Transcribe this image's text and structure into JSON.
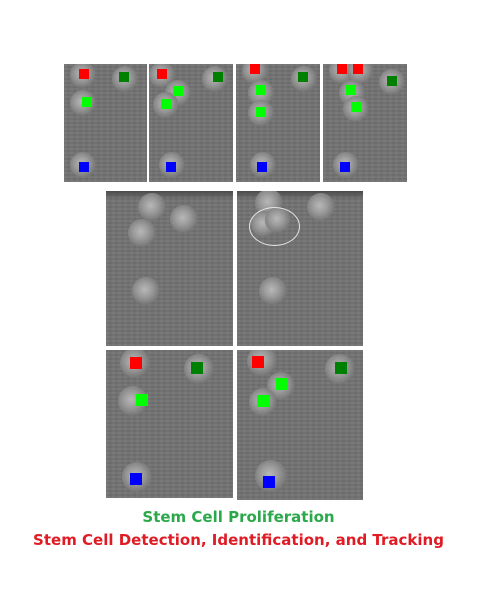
{
  "captions": {
    "proliferation": "Stem Cell Proliferation",
    "detection": "Stem Cell Detection, Identification, and Tracking"
  },
  "colors": {
    "proliferation_text": "#2aa84a",
    "detection_text": "#e01b24",
    "marker_red": "#ff0000",
    "marker_bright_green": "#00ff00",
    "marker_dark_green": "#008000",
    "marker_blue": "#0000ff",
    "ellipse_outline": "#e6e6e6"
  },
  "figure_rows": [
    {
      "row": "top",
      "panel_count": 4,
      "content": "cell frames with tracking markers"
    },
    {
      "row": "middle",
      "panel_count": 2,
      "content": "raw cell frames, second shows dividing cell circled"
    },
    {
      "row": "bottom",
      "panel_count": 2,
      "content": "cell frames with tracking markers"
    }
  ]
}
